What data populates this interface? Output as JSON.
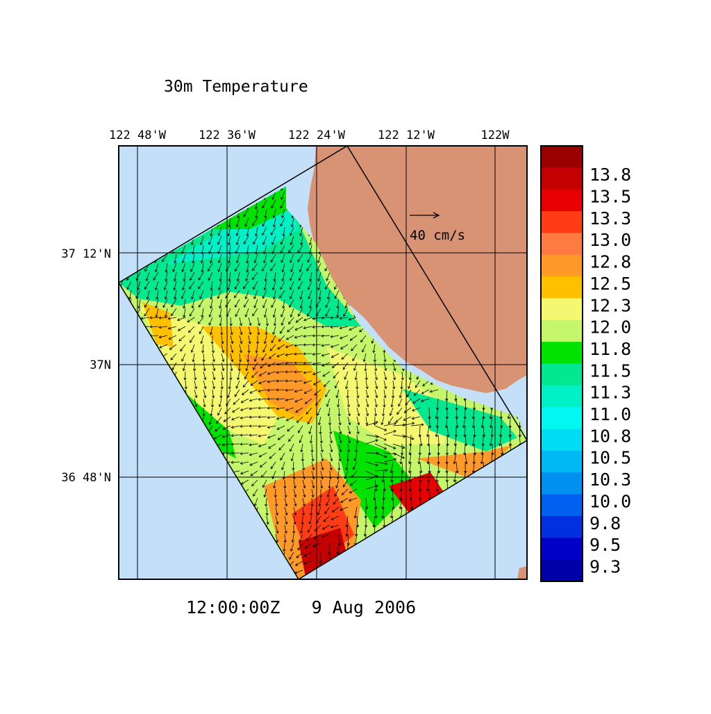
{
  "title": "30m Temperature",
  "timestamp": "12:00:00Z   9 Aug 2006",
  "lon_labels": [
    "122 48'W",
    "122 36'W",
    "122 24'W",
    "122 12'W",
    "122W"
  ],
  "lat_labels": [
    "37 12'N",
    "37N",
    "36 48'N"
  ],
  "vector_scale_label": "40 cm/s",
  "colors": {
    "ocean": "#c4e0f8",
    "land": "#d89274",
    "arrows": "#000000"
  },
  "colorbar": [
    {
      "label": "13.8",
      "color": "#9b0000"
    },
    {
      "label": "13.5",
      "color": "#c40000"
    },
    {
      "label": "13.3",
      "color": "#e80000"
    },
    {
      "label": "13.0",
      "color": "#ff3c14"
    },
    {
      "label": "12.8",
      "color": "#ff7a40"
    },
    {
      "label": "12.5",
      "color": "#ff9a28"
    },
    {
      "label": "12.3",
      "color": "#ffc000"
    },
    {
      "label": "12.0",
      "color": "#f4f870"
    },
    {
      "label": "11.8",
      "color": "#c4f56a"
    },
    {
      "label": "11.5",
      "color": "#00e200"
    },
    {
      "label": "11.3",
      "color": "#00e890"
    },
    {
      "label": "11.0",
      "color": "#00f0c8"
    },
    {
      "label": "10.8",
      "color": "#00f8f0"
    },
    {
      "label": "10.5",
      "color": "#00dcf4"
    },
    {
      "label": "10.3",
      "color": "#00b8f4"
    },
    {
      "label": "10.0",
      "color": "#0090f0"
    },
    {
      "label": "9.8",
      "color": "#0060f0"
    },
    {
      "label": "9.5",
      "color": "#0030e0"
    },
    {
      "label": "9.3",
      "color": "#0000c8"
    },
    {
      "label": "",
      "color": "#0000a8"
    }
  ]
}
